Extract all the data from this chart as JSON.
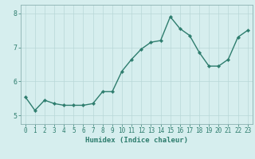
{
  "x": [
    0,
    1,
    2,
    3,
    4,
    5,
    6,
    7,
    8,
    9,
    10,
    11,
    12,
    13,
    14,
    15,
    16,
    17,
    18,
    19,
    20,
    21,
    22,
    23
  ],
  "y": [
    5.55,
    5.15,
    5.45,
    5.35,
    5.3,
    5.3,
    5.3,
    5.35,
    5.7,
    5.7,
    6.3,
    6.65,
    6.95,
    7.15,
    7.2,
    7.9,
    7.55,
    7.35,
    6.85,
    6.45,
    6.45,
    6.65,
    7.3,
    7.5
  ],
  "line_color": "#2e7d6e",
  "marker_color": "#2e7d6e",
  "bg_color": "#d6eeee",
  "grid_color": "#b8d8d8",
  "axis_color": "#2e7d6e",
  "spine_color": "#8ab0b0",
  "xlabel": "Humidex (Indice chaleur)",
  "ylim": [
    4.75,
    8.25
  ],
  "xlim": [
    -0.5,
    23.5
  ],
  "yticks": [
    5,
    6,
    7,
    8
  ],
  "xticks": [
    0,
    1,
    2,
    3,
    4,
    5,
    6,
    7,
    8,
    9,
    10,
    11,
    12,
    13,
    14,
    15,
    16,
    17,
    18,
    19,
    20,
    21,
    22,
    23
  ],
  "label_fontsize": 6.5,
  "tick_fontsize": 5.5,
  "line_width": 1.0,
  "marker_size": 2.2
}
